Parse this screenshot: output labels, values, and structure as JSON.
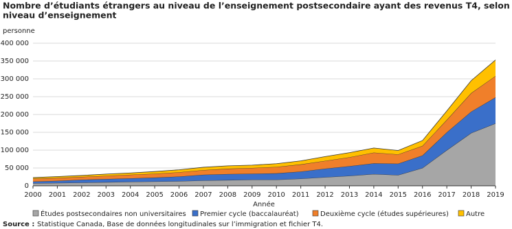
{
  "chart_data": {
    "type": "stacked_area",
    "title": [
      "Nombre d’étudiants étrangers au niveau de l’enseignement postsecondaire ayant des revenus T4, selon le",
      "niveau d’enseignement"
    ],
    "y_label": "personne",
    "x_label": "Année",
    "source_label": "Source :",
    "source": "Statistique Canada, Base de données longitudinales sur l’immigration et fichier T4.",
    "categories": [
      "2000",
      "2001",
      "2002",
      "2003",
      "2004",
      "2005",
      "2006",
      "2007",
      "2008",
      "2009",
      "2010",
      "2011",
      "2012",
      "2013",
      "2014",
      "2015",
      "2016",
      "2017",
      "2018",
      "2019"
    ],
    "series": [
      {
        "name": "Études postsecondaires non universitaires",
        "color": "#a6a6a6",
        "values": [
          7000,
          8000,
          9000,
          10000,
          11000,
          12000,
          13000,
          15000,
          16000,
          17000,
          17000,
          20000,
          24000,
          28000,
          33000,
          30000,
          50000,
          100000,
          148000,
          175000
        ]
      },
      {
        "name": "Premier cycle (baccalauréat)",
        "color": "#3a6fc9",
        "values": [
          5000,
          6000,
          8000,
          9000,
          10000,
          11000,
          13000,
          16000,
          17000,
          17000,
          18000,
          20000,
          24000,
          27000,
          30000,
          32000,
          35000,
          50000,
          60000,
          73000
        ]
      },
      {
        "name": "Deuxième cycle (études supérieures)",
        "color": "#f07f2a",
        "values": [
          8000,
          8000,
          8000,
          9000,
          10000,
          11000,
          12000,
          13000,
          15000,
          16000,
          18000,
          20000,
          22000,
          25000,
          30000,
          26000,
          27000,
          35000,
          52000,
          60000
        ]
      },
      {
        "name": "Autre",
        "color": "#ffc000",
        "values": [
          3000,
          4000,
          4000,
          5000,
          5000,
          6000,
          7000,
          8000,
          8000,
          8000,
          9000,
          10000,
          12000,
          13000,
          13000,
          11000,
          15000,
          25000,
          35000,
          45000
        ]
      }
    ],
    "ylim": [
      0,
      400000
    ],
    "yticks": [
      0,
      {
        "value": 50000,
        "label": "50 000"
      },
      {
        "value": 100000,
        "label": "100 000"
      },
      {
        "value": 150000,
        "label": "150 000"
      },
      {
        "value": 200000,
        "label": "200 000"
      },
      {
        "value": 250000,
        "label": "250 000"
      },
      {
        "value": 300000,
        "label": "300 000"
      },
      {
        "value": 350000,
        "label": "350 000"
      },
      {
        "value": 400000,
        "label": "400 000"
      }
    ],
    "grid": true
  }
}
